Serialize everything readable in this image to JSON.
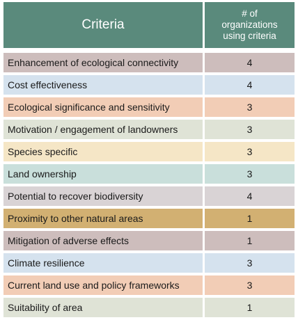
{
  "table": {
    "header": {
      "criteria": "Criteria",
      "count_line1": "# of",
      "count_line2": "organizations",
      "count_line3": "using criteria"
    },
    "rows": [
      {
        "criteria": "Enhancement of ecological connectivity",
        "count": "4",
        "color": "#cdbdbc"
      },
      {
        "criteria": "Cost effectiveness",
        "count": "4",
        "color": "#d5e2ee"
      },
      {
        "criteria": "Ecological significance and sensitivity",
        "count": "3",
        "color": "#f2cdb6"
      },
      {
        "criteria": "Motivation / engagement of landowners",
        "count": "3",
        "color": "#dfe3d6"
      },
      {
        "criteria": "Species specific",
        "count": "3",
        "color": "#f5e6c6"
      },
      {
        "criteria": "Land ownership",
        "count": "3",
        "color": "#c9dfdb"
      },
      {
        "criteria": "Potential to recover biodiversity",
        "count": "4",
        "color": "#d9d3d5"
      },
      {
        "criteria": "Proximity to other natural areas",
        "count": "1",
        "color": "#d2b072"
      },
      {
        "criteria": "Mitigation of adverse effects",
        "count": "1",
        "color": "#cdbdbc"
      },
      {
        "criteria": "Climate resilience",
        "count": "3",
        "color": "#d5e2ee"
      },
      {
        "criteria": "Current land use and policy frameworks",
        "count": "3",
        "color": "#f2cdb6"
      },
      {
        "criteria": "Suitability of area",
        "count": "1",
        "color": "#dfe3d6"
      }
    ]
  }
}
